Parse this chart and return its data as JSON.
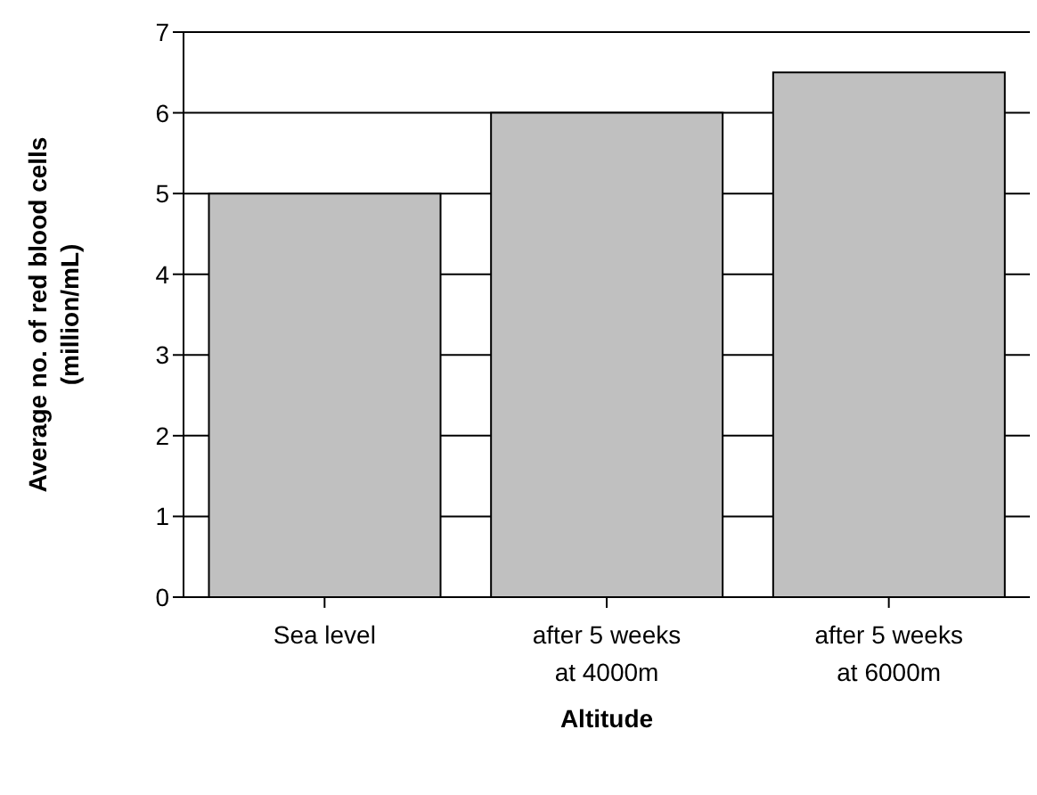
{
  "chart_data": {
    "type": "bar",
    "xlabel": "Altitude",
    "ylabel": "Average no. of red blood cells (million/mL)",
    "categories": [
      "Sea level",
      "after 5 weeks at 4000m",
      "after 5 weeks at 6000m"
    ],
    "values": [
      5,
      6,
      6.5
    ],
    "color": "#c0c0c0",
    "ylim": [
      0,
      7
    ],
    "yticks": [
      0,
      1,
      2,
      3,
      4,
      5,
      6,
      7
    ],
    "grid": "y",
    "legend": false
  }
}
